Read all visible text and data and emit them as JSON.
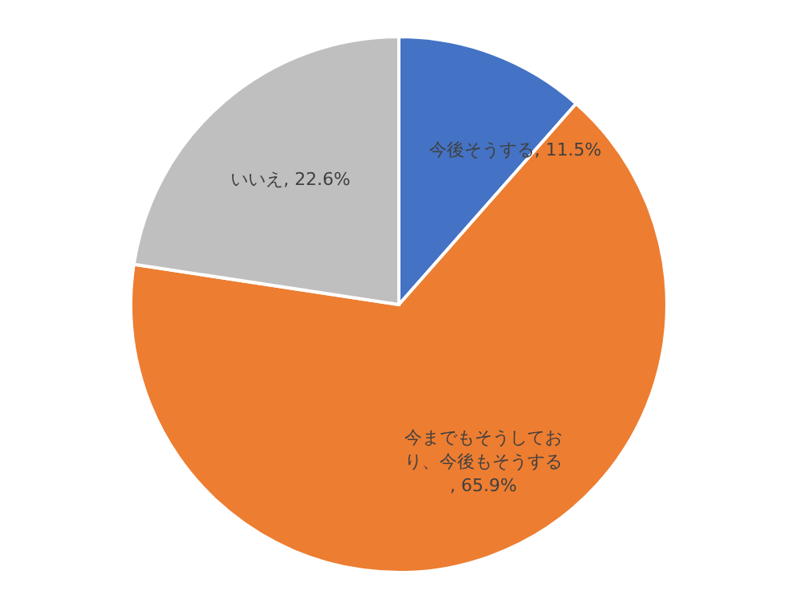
{
  "chart_data": {
    "type": "pie",
    "categories": [
      "今後そうする",
      "今までもそうしており、今後もそうする",
      "いいえ"
    ],
    "values": [
      11.5,
      65.9,
      22.6
    ],
    "colors": [
      "#4472c4",
      "#ed7d31",
      "#bfbfbf"
    ],
    "value_labels": [
      ", 11.5%",
      ", 65.9%",
      ", 22.6%"
    ],
    "legend": false
  }
}
